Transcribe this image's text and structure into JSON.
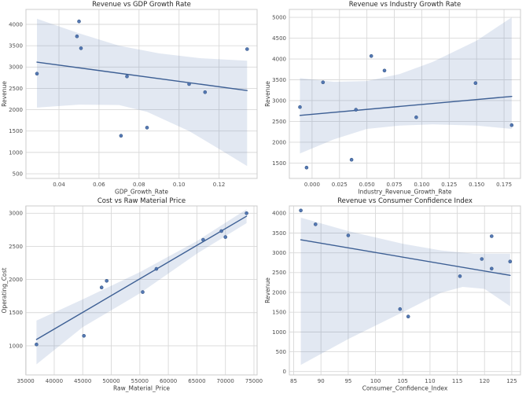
{
  "figure": {
    "background": "#ffffff",
    "colors": {
      "point": "#4c72b0",
      "point_edge": "#3a5a88",
      "line": "#3d5f94",
      "band": "#4c72b0",
      "band_opacity": 0.16,
      "grid": "#d9d9d9",
      "frame": "#cccccc",
      "tick_text": "#4d4d4d",
      "label_text": "#3b3b3b",
      "title_text": "#262626"
    }
  },
  "chart_data": [
    {
      "type": "scatter",
      "title": "Revenue vs GDP Growth Rate",
      "xlabel": "GDP_Growth_Rate",
      "ylabel": "Revenue",
      "legend": "none",
      "grid": true,
      "xlim": [
        0.0235,
        0.139
      ],
      "ylim": [
        390,
        4350
      ],
      "xticks": [
        0.04,
        0.06,
        0.08,
        0.1,
        0.12
      ],
      "xtick_labels": [
        "0.04",
        "0.06",
        "0.08",
        "0.10",
        "0.12"
      ],
      "yticks": [
        500,
        1000,
        1500,
        2000,
        2500,
        3000,
        3500,
        4000
      ],
      "ytick_labels": [
        "500",
        "1000",
        "1500",
        "2000",
        "2500",
        "3000",
        "3500",
        "4000"
      ],
      "points": [
        [
          0.029,
          2845
        ],
        [
          0.049,
          3720
        ],
        [
          0.05,
          4070
        ],
        [
          0.051,
          3440
        ],
        [
          0.071,
          1390
        ],
        [
          0.074,
          2780
        ],
        [
          0.084,
          1580
        ],
        [
          0.105,
          2600
        ],
        [
          0.113,
          2410
        ],
        [
          0.134,
          3420
        ]
      ],
      "regression": [
        [
          0.029,
          3115
        ],
        [
          0.134,
          2450
        ]
      ],
      "band_upper": [
        [
          0.029,
          4130
        ],
        [
          0.05,
          3790
        ],
        [
          0.07,
          3500
        ],
        [
          0.09,
          3320
        ],
        [
          0.11,
          3210
        ],
        [
          0.134,
          3150
        ]
      ],
      "band_lower": [
        [
          0.029,
          2050
        ],
        [
          0.05,
          2120
        ],
        [
          0.07,
          2110
        ],
        [
          0.084,
          1950
        ],
        [
          0.105,
          1500
        ],
        [
          0.12,
          1080
        ],
        [
          0.134,
          680
        ]
      ]
    },
    {
      "type": "scatter",
      "title": "Revenue vs Industry Growth Rate",
      "xlabel": "Industry_Revenue_Growth_Rate",
      "ylabel": "Revenue",
      "legend": "none",
      "grid": true,
      "xlim": [
        -0.0207,
        0.19
      ],
      "ylim": [
        1130,
        5190
      ],
      "xticks": [
        0.0,
        0.025,
        0.05,
        0.075,
        0.1,
        0.125,
        0.15,
        0.175
      ],
      "xtick_labels": [
        "0.000",
        "0.025",
        "0.050",
        "0.075",
        "0.100",
        "0.125",
        "0.150",
        "0.175"
      ],
      "yticks": [
        1500,
        2000,
        2500,
        3000,
        3500,
        4000,
        4500,
        5000
      ],
      "ytick_labels": [
        "1500",
        "2000",
        "2500",
        "3000",
        "3500",
        "4000",
        "4500",
        "5000"
      ],
      "points": [
        [
          -0.011,
          2845
        ],
        [
          -0.005,
          1390
        ],
        [
          0.01,
          3440
        ],
        [
          0.036,
          1580
        ],
        [
          0.04,
          2780
        ],
        [
          0.054,
          4070
        ],
        [
          0.066,
          3720
        ],
        [
          0.095,
          2600
        ],
        [
          0.149,
          3420
        ],
        [
          0.182,
          2410
        ]
      ],
      "regression": [
        [
          -0.011,
          2645
        ],
        [
          0.182,
          3100
        ]
      ],
      "band_upper": [
        [
          -0.011,
          3540
        ],
        [
          0.02,
          3450
        ],
        [
          0.05,
          3470
        ],
        [
          0.08,
          3640
        ],
        [
          0.11,
          3930
        ],
        [
          0.15,
          4440
        ],
        [
          0.182,
          5000
        ]
      ],
      "band_lower": [
        [
          -0.011,
          1730
        ],
        [
          0.02,
          2070
        ],
        [
          0.05,
          2320
        ],
        [
          0.08,
          2400
        ],
        [
          0.11,
          2430
        ],
        [
          0.15,
          2400
        ],
        [
          0.182,
          2320
        ]
      ]
    },
    {
      "type": "scatter",
      "title": "Cost vs Raw Material Price",
      "xlabel": "Raw_Material_Price",
      "ylabel": "Operating_Cost",
      "legend": "none",
      "grid": true,
      "xlim": [
        35050,
        75550
      ],
      "ylim": [
        560,
        3110
      ],
      "xticks": [
        35000,
        40000,
        45000,
        50000,
        55000,
        60000,
        65000,
        70000,
        75000
      ],
      "xtick_labels": [
        "35000",
        "40000",
        "45000",
        "50000",
        "55000",
        "60000",
        "65000",
        "70000",
        "75000"
      ],
      "yticks": [
        1000,
        1500,
        2000,
        2500,
        3000
      ],
      "ytick_labels": [
        "1000",
        "1500",
        "2000",
        "2500",
        "3000"
      ],
      "points": [
        [
          36900,
          1020
        ],
        [
          45200,
          1150
        ],
        [
          48300,
          1880
        ],
        [
          49200,
          1980
        ],
        [
          55500,
          1810
        ],
        [
          57900,
          2160
        ],
        [
          66100,
          2600
        ],
        [
          69300,
          2730
        ],
        [
          70000,
          2640
        ],
        [
          73700,
          3000
        ]
      ],
      "regression": [
        [
          36900,
          1095
        ],
        [
          73700,
          2955
        ]
      ],
      "band_upper": [
        [
          36900,
          1380
        ],
        [
          45000,
          1700
        ],
        [
          55000,
          2110
        ],
        [
          65000,
          2580
        ],
        [
          73700,
          3060
        ]
      ],
      "band_lower": [
        [
          36900,
          720
        ],
        [
          45000,
          1280
        ],
        [
          55000,
          1790
        ],
        [
          65000,
          2390
        ],
        [
          73700,
          2850
        ]
      ]
    },
    {
      "type": "scatter",
      "title": "Revenue vs Consumer Confidence Index",
      "xlabel": "Consumer_Confidence_Index",
      "ylabel": "Revenue",
      "legend": "none",
      "grid": true,
      "xlim": [
        84.2,
        126.6
      ],
      "ylim": [
        -85,
        4185
      ],
      "xticks": [
        85,
        90,
        95,
        100,
        105,
        110,
        115,
        120,
        125
      ],
      "xtick_labels": [
        "85",
        "90",
        "95",
        "100",
        "105",
        "110",
        "115",
        "120",
        "125"
      ],
      "yticks": [
        0,
        500,
        1000,
        1500,
        2000,
        2500,
        3000,
        3500,
        4000
      ],
      "ytick_labels": [
        "0",
        "500",
        "1000",
        "1500",
        "2000",
        "2500",
        "3000",
        "3500",
        "4000"
      ],
      "points": [
        [
          86.3,
          4070
        ],
        [
          89.0,
          3720
        ],
        [
          95.0,
          3440
        ],
        [
          104.5,
          1580
        ],
        [
          106.0,
          1390
        ],
        [
          115.5,
          2410
        ],
        [
          119.5,
          2845
        ],
        [
          121.3,
          3420
        ],
        [
          121.3,
          2600
        ],
        [
          124.7,
          2780
        ]
      ],
      "regression": [
        [
          86.3,
          3330
        ],
        [
          124.7,
          2430
        ]
      ],
      "band_upper": [
        [
          86.3,
          3890
        ],
        [
          95,
          3550
        ],
        [
          105,
          3230
        ],
        [
          112,
          3060
        ],
        [
          118,
          2980
        ],
        [
          124.7,
          2980
        ]
      ],
      "band_lower": [
        [
          86.3,
          170
        ],
        [
          95,
          820
        ],
        [
          105,
          1500
        ],
        [
          112,
          1990
        ],
        [
          116,
          2140
        ],
        [
          120,
          2090
        ],
        [
          124.7,
          1650
        ]
      ]
    }
  ]
}
